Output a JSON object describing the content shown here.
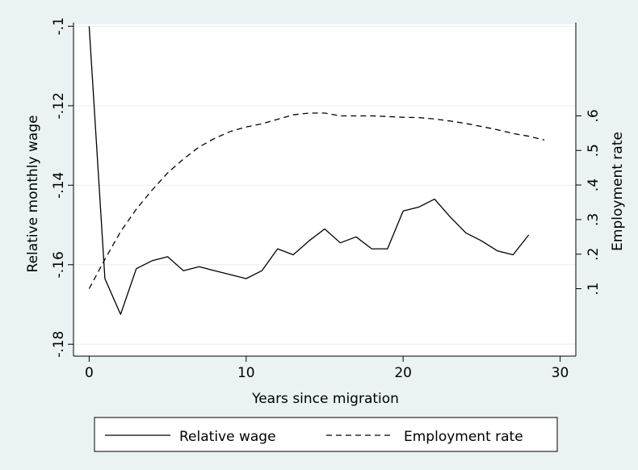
{
  "chart_data": {
    "type": "line",
    "title": "",
    "xlabel": "Years since migration",
    "ylabel_left": "Relative monthly wage",
    "ylabel_right": "Employment rate",
    "xlim": [
      -1,
      31
    ],
    "ylim_left": [
      -0.183,
      -0.0995
    ],
    "ylim_right": [
      -0.095,
      0.865
    ],
    "x_ticks": [
      0,
      10,
      20,
      30
    ],
    "x_tick_labels": [
      "0",
      "10",
      "20",
      "30"
    ],
    "y_left_ticks": [
      -0.1,
      -0.12,
      -0.14,
      -0.16,
      -0.18
    ],
    "y_left_tick_labels": [
      "-.1",
      "-.12",
      "-.14",
      "-.16",
      "-.18"
    ],
    "y_right_ticks": [
      0.1,
      0.2,
      0.3,
      0.4,
      0.5,
      0.6
    ],
    "y_right_tick_labels": [
      ".1",
      ".2",
      ".3",
      ".4",
      ".5",
      ".6"
    ],
    "grid": true,
    "legend_position": "bottom",
    "series": [
      {
        "name": "Relative wage",
        "axis": "left",
        "style": "solid",
        "color": "#000000",
        "x": [
          0,
          1,
          2,
          3,
          4,
          5,
          6,
          7,
          8,
          9,
          10,
          11,
          12,
          13,
          14,
          15,
          16,
          17,
          18,
          19,
          20,
          21,
          22,
          23,
          24,
          25,
          26,
          27,
          28
        ],
        "y": [
          -0.1,
          -0.1635,
          -0.1725,
          -0.161,
          -0.159,
          -0.158,
          -0.1615,
          -0.1605,
          -0.1615,
          -0.1625,
          -0.1635,
          -0.1615,
          -0.156,
          -0.1575,
          -0.154,
          -0.151,
          -0.1545,
          -0.153,
          -0.156,
          -0.156,
          -0.1465,
          -0.1455,
          -0.1435,
          -0.148,
          -0.152,
          -0.154,
          -0.1565,
          -0.1575,
          -0.1525
        ]
      },
      {
        "name": "Employment rate",
        "axis": "right",
        "style": "dashed",
        "color": "#000000",
        "x": [
          0,
          1,
          2,
          3,
          4,
          5,
          6,
          7,
          8,
          9,
          10,
          11,
          12,
          13,
          14,
          15,
          16,
          17,
          18,
          19,
          20,
          21,
          22,
          23,
          24,
          25,
          26,
          27,
          28,
          29
        ],
        "y": [
          0.1,
          0.185,
          0.265,
          0.33,
          0.385,
          0.435,
          0.475,
          0.51,
          0.535,
          0.555,
          0.568,
          0.577,
          0.59,
          0.603,
          0.608,
          0.608,
          0.6,
          0.6,
          0.6,
          0.598,
          0.596,
          0.595,
          0.591,
          0.585,
          0.578,
          0.569,
          0.56,
          0.549,
          0.541,
          0.53
        ]
      }
    ]
  }
}
